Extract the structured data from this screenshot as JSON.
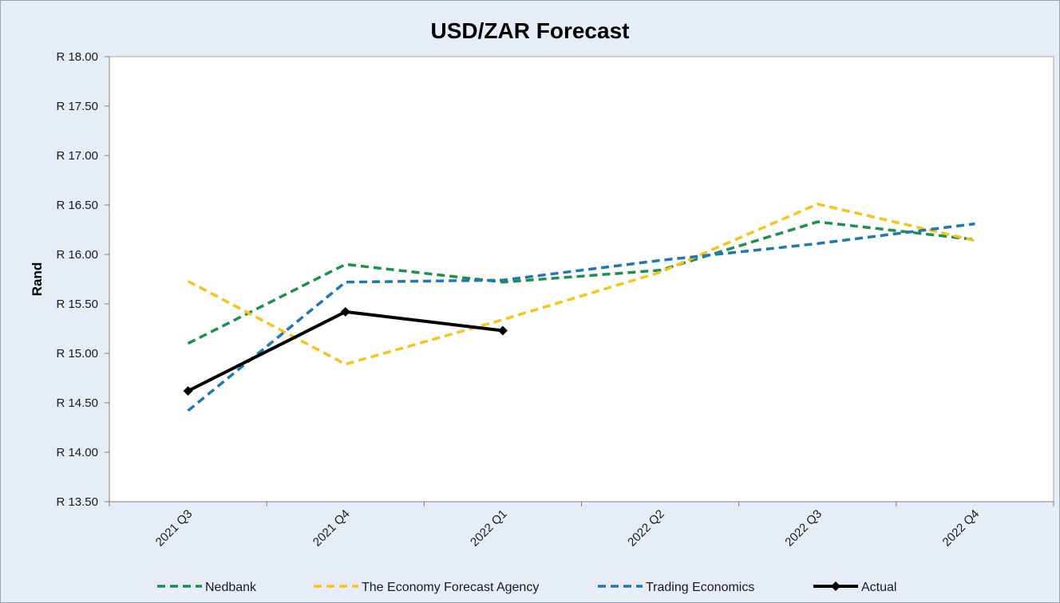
{
  "chart_data": {
    "type": "line",
    "title": "USD/ZAR Forecast",
    "xlabel": "",
    "ylabel": "Rand",
    "ylim": [
      13.5,
      18.0
    ],
    "y_ticks": [
      13.5,
      14.0,
      14.5,
      15.0,
      15.5,
      16.0,
      16.5,
      17.0,
      17.5,
      18.0
    ],
    "y_tick_labels": [
      "R 13.50",
      "R 14.00",
      "R 14.50",
      "R 15.00",
      "R 15.50",
      "R 16.00",
      "R 16.50",
      "R 17.00",
      "R 17.50",
      "R 18.00"
    ],
    "categories": [
      "2021 Q3",
      "2021 Q4",
      "2022 Q1",
      "2022 Q2",
      "2022 Q3",
      "2022 Q4"
    ],
    "grid": false,
    "legend_position": "bottom",
    "series": [
      {
        "name": "Nedbank",
        "color": "#1e8f4e",
        "style": "dashed",
        "marker": "none",
        "values": [
          15.1,
          15.9,
          15.72,
          15.84,
          16.33,
          16.15
        ]
      },
      {
        "name": "The Economy Forecast Agency",
        "color": "#f5c518",
        "style": "dashed",
        "marker": "none",
        "values": [
          15.73,
          14.89,
          15.34,
          15.82,
          16.51,
          16.14
        ]
      },
      {
        "name": "Trading Economics",
        "color": "#1f77b4",
        "style": "dashed",
        "marker": "none",
        "values": [
          14.42,
          15.72,
          15.74,
          15.94,
          16.11,
          16.31
        ]
      },
      {
        "name": "Actual",
        "color": "#000000",
        "style": "solid",
        "marker": "diamond",
        "values": [
          14.62,
          15.42,
          15.23,
          null,
          null,
          null
        ]
      }
    ]
  }
}
